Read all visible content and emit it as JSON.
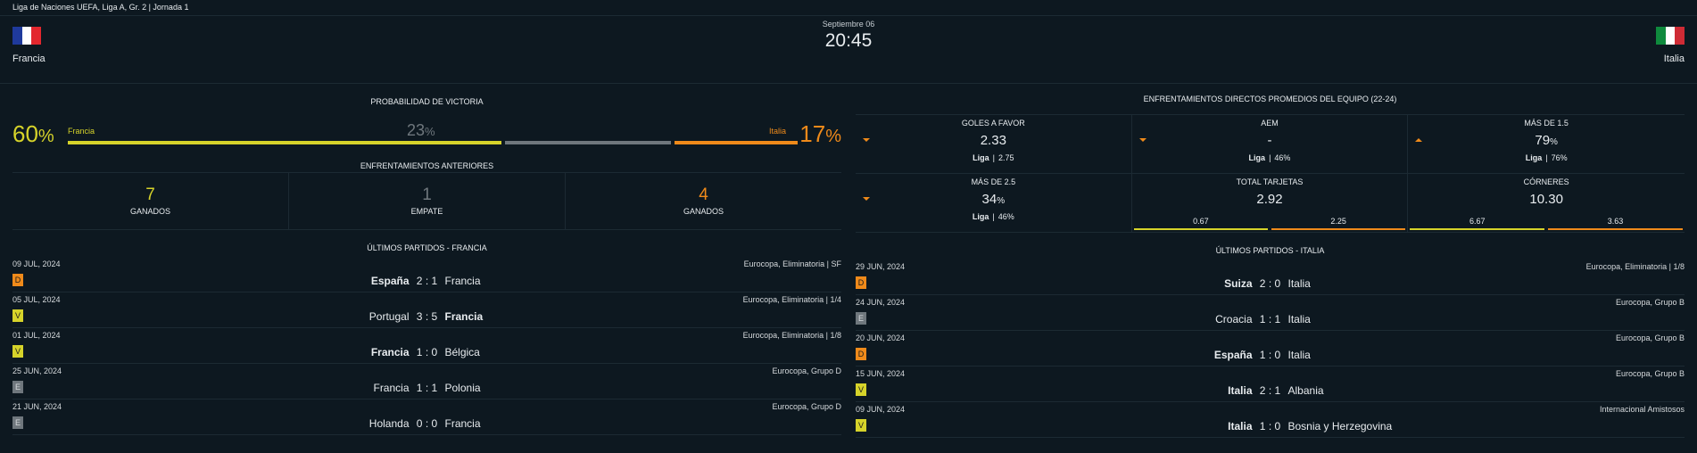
{
  "topbar": {
    "competition": "Liga de Naciones UEFA, Liga A, Gr. 2  |  Jornada 1"
  },
  "header": {
    "home": {
      "name": "Francia",
      "flag_colors": [
        "#1f3a9c",
        "#ffffff",
        "#e3272e"
      ]
    },
    "away": {
      "name": "Italia",
      "flag_colors": [
        "#0f8a3d",
        "#ffffff",
        "#cf2b35"
      ]
    },
    "date": "Septiembre 06",
    "time": "20:45"
  },
  "colors": {
    "home_accent": "#d6d32a",
    "away_accent": "#ef8a1a",
    "draw": "#6f777d"
  },
  "probability": {
    "title": "PROBABILIDAD DE VICTORIA",
    "home_pct": "60",
    "home_label": "Francia",
    "draw_pct": "23",
    "away_pct": "17",
    "away_label": "Italia",
    "pct_sign": "%"
  },
  "previous": {
    "title": "ENFRENTAMIENTOS ANTERIORES",
    "cells": [
      {
        "num": "7",
        "label": "GANADOS"
      },
      {
        "num": "1",
        "label": "EMPATE"
      },
      {
        "num": "4",
        "label": "GANADOS"
      }
    ]
  },
  "stats": {
    "title": "ENFRENTAMIENTOS DIRECTOS PROMEDIOS DEL EQUIPO (22-24)",
    "sep": "|",
    "items": [
      {
        "title": "GOLES A FAVOR",
        "value": "2.33",
        "unit": "",
        "arrow": "down",
        "liga_label": "Liga",
        "liga_val": "2.75"
      },
      {
        "title": "AEM",
        "value": "-",
        "unit": "",
        "arrow": "down",
        "liga_label": "Liga",
        "liga_val": "46%"
      },
      {
        "title": "MÁS DE 1.5",
        "value": "79",
        "unit": "%",
        "arrow": "up",
        "liga_label": "Liga",
        "liga_val": "76%"
      },
      {
        "title": "MÁS DE 2.5",
        "value": "34",
        "unit": "%",
        "arrow": "down",
        "liga_label": "Liga",
        "liga_val": "46%"
      },
      {
        "title": "TOTAL TARJETAS",
        "value": "2.92",
        "unit": "",
        "split_home": "0.67",
        "split_away": "2.25"
      },
      {
        "title": "CÓRNERES",
        "value": "10.30",
        "unit": "",
        "split_home": "6.67",
        "split_away": "3.63"
      }
    ]
  },
  "home_matches": {
    "title": "ÚLTIMOS PARTIDOS - FRANCIA",
    "rows": [
      {
        "date": "09 JUL, 2024",
        "comp": "Eurocopa, Eliminatoria | SF",
        "result": "D",
        "t1": "España",
        "s1": "2",
        "s2": "1",
        "t2": "Francia",
        "winner": 1
      },
      {
        "date": "05 JUL, 2024",
        "comp": "Eurocopa, Eliminatoria | 1/4",
        "result": "V",
        "t1": "Portugal",
        "s1": "3",
        "s2": "5",
        "t2": "Francia",
        "winner": 2
      },
      {
        "date": "01 JUL, 2024",
        "comp": "Eurocopa, Eliminatoria | 1/8",
        "result": "V",
        "t1": "Francia",
        "s1": "1",
        "s2": "0",
        "t2": "Bélgica",
        "winner": 1
      },
      {
        "date": "25 JUN, 2024",
        "comp": "Eurocopa, Grupo D",
        "result": "E",
        "t1": "Francia",
        "s1": "1",
        "s2": "1",
        "t2": "Polonia",
        "winner": 0
      },
      {
        "date": "21 JUN, 2024",
        "comp": "Eurocopa, Grupo D",
        "result": "E",
        "t1": "Holanda",
        "s1": "0",
        "s2": "0",
        "t2": "Francia",
        "winner": 0
      }
    ]
  },
  "away_matches": {
    "title": "ÚLTIMOS PARTIDOS - ITALIA",
    "rows": [
      {
        "date": "29 JUN, 2024",
        "comp": "Eurocopa, Eliminatoria | 1/8",
        "result": "D",
        "t1": "Suiza",
        "s1": "2",
        "s2": "0",
        "t2": "Italia",
        "winner": 1
      },
      {
        "date": "24 JUN, 2024",
        "comp": "Eurocopa, Grupo B",
        "result": "E",
        "t1": "Croacia",
        "s1": "1",
        "s2": "1",
        "t2": "Italia",
        "winner": 0
      },
      {
        "date": "20 JUN, 2024",
        "comp": "Eurocopa, Grupo B",
        "result": "D",
        "t1": "España",
        "s1": "1",
        "s2": "0",
        "t2": "Italia",
        "winner": 1
      },
      {
        "date": "15 JUN, 2024",
        "comp": "Eurocopa, Grupo B",
        "result": "V",
        "t1": "Italia",
        "s1": "2",
        "s2": "1",
        "t2": "Albania",
        "winner": 1
      },
      {
        "date": "09 JUN, 2024",
        "comp": "Internacional Amistosos",
        "result": "V",
        "t1": "Italia",
        "s1": "1",
        "s2": "0",
        "t2": "Bosnia y Herzegovina",
        "winner": 1
      }
    ]
  }
}
